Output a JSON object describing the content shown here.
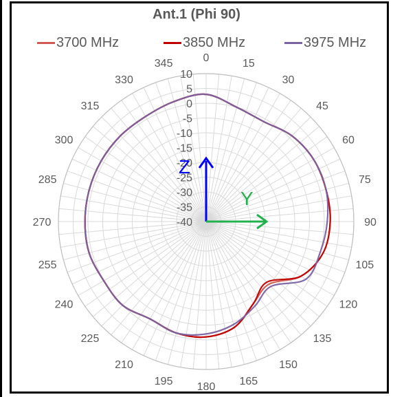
{
  "chart_data": {
    "type": "radar",
    "title": "Ant.1 (Phi 90)",
    "angle_ticks": [
      "0",
      "15",
      "30",
      "45",
      "60",
      "75",
      "90",
      "105",
      "120",
      "135",
      "150",
      "165",
      "180",
      "195",
      "210",
      "225",
      "240",
      "255",
      "270",
      "285",
      "300",
      "315",
      "330",
      "345"
    ],
    "radial_ticks": [
      "10",
      "5",
      "0",
      "-5",
      "-10",
      "-15",
      "-20",
      "-25",
      "-30",
      "-35",
      "-40"
    ],
    "rlim": [
      -40,
      10
    ],
    "grid": true,
    "legend_position": "top",
    "angles_deg": [
      0,
      15,
      30,
      45,
      60,
      75,
      90,
      105,
      120,
      135,
      150,
      165,
      180,
      195,
      210,
      225,
      240,
      255,
      270,
      285,
      300,
      315,
      330,
      345
    ],
    "series": [
      {
        "name": "3700 MHz",
        "color": "#d05b52",
        "values": [
          3,
          0,
          -1,
          1,
          2,
          2,
          2,
          1,
          -3,
          -10,
          -8,
          -3,
          -1,
          -1,
          -2,
          0,
          0,
          1,
          1,
          1,
          1,
          1,
          1,
          2
        ]
      },
      {
        "name": "3850 MHz",
        "color": "#c00000",
        "values": [
          3,
          0,
          -1,
          1,
          2,
          2,
          2,
          1,
          -3,
          -11,
          -8,
          -3,
          -1,
          -1,
          -2,
          0,
          0,
          1,
          1,
          1,
          1,
          1,
          1,
          2
        ]
      },
      {
        "name": "3975 MHz",
        "color": "#7b62a3",
        "values": [
          3,
          0,
          -1,
          1,
          2,
          2,
          1,
          0,
          -1,
          -9,
          -7,
          -4,
          -2,
          -1,
          -2,
          0,
          0,
          1,
          1,
          1,
          1,
          1,
          1,
          2
        ]
      }
    ],
    "annotations": {
      "z_label": "Z",
      "z_color": "#0000ff",
      "y_label": "Y",
      "y_color": "#22b14c"
    }
  }
}
